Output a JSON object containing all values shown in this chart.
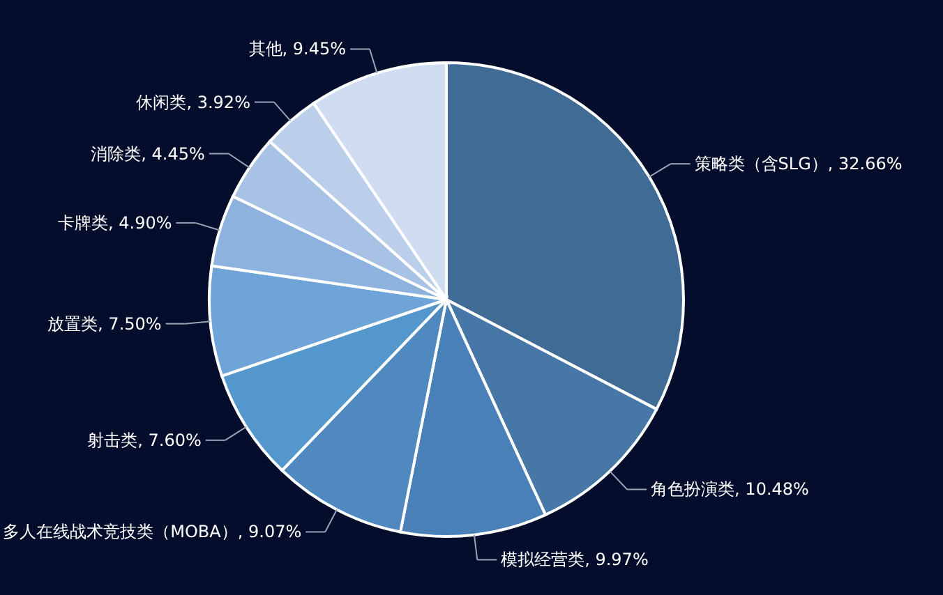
{
  "chart_data": {
    "type": "pie",
    "categories": [
      "策略类（含SLG）",
      "角色扮演类",
      "模拟经营类",
      "多人在线战术竞技类（MOBA）",
      "射击类",
      "放置类",
      "卡牌类",
      "消除类",
      "休闲类",
      "其他"
    ],
    "values": [
      32.66,
      10.48,
      9.97,
      9.07,
      7.6,
      7.5,
      4.9,
      4.45,
      3.92,
      9.45
    ],
    "value_labels": [
      "32.66%",
      "10.48%",
      "9.97%",
      "9.07%",
      "7.60%",
      "7.50%",
      "4.90%",
      "4.45%",
      "3.92%",
      "9.45%"
    ],
    "colors": [
      "#3f6b94",
      "#4677a6",
      "#4a80b8",
      "#5088c0",
      "#5497cc",
      "#6fa4d8",
      "#8db2dd",
      "#a7c2e5",
      "#bccfea",
      "#d0dcf0"
    ]
  }
}
